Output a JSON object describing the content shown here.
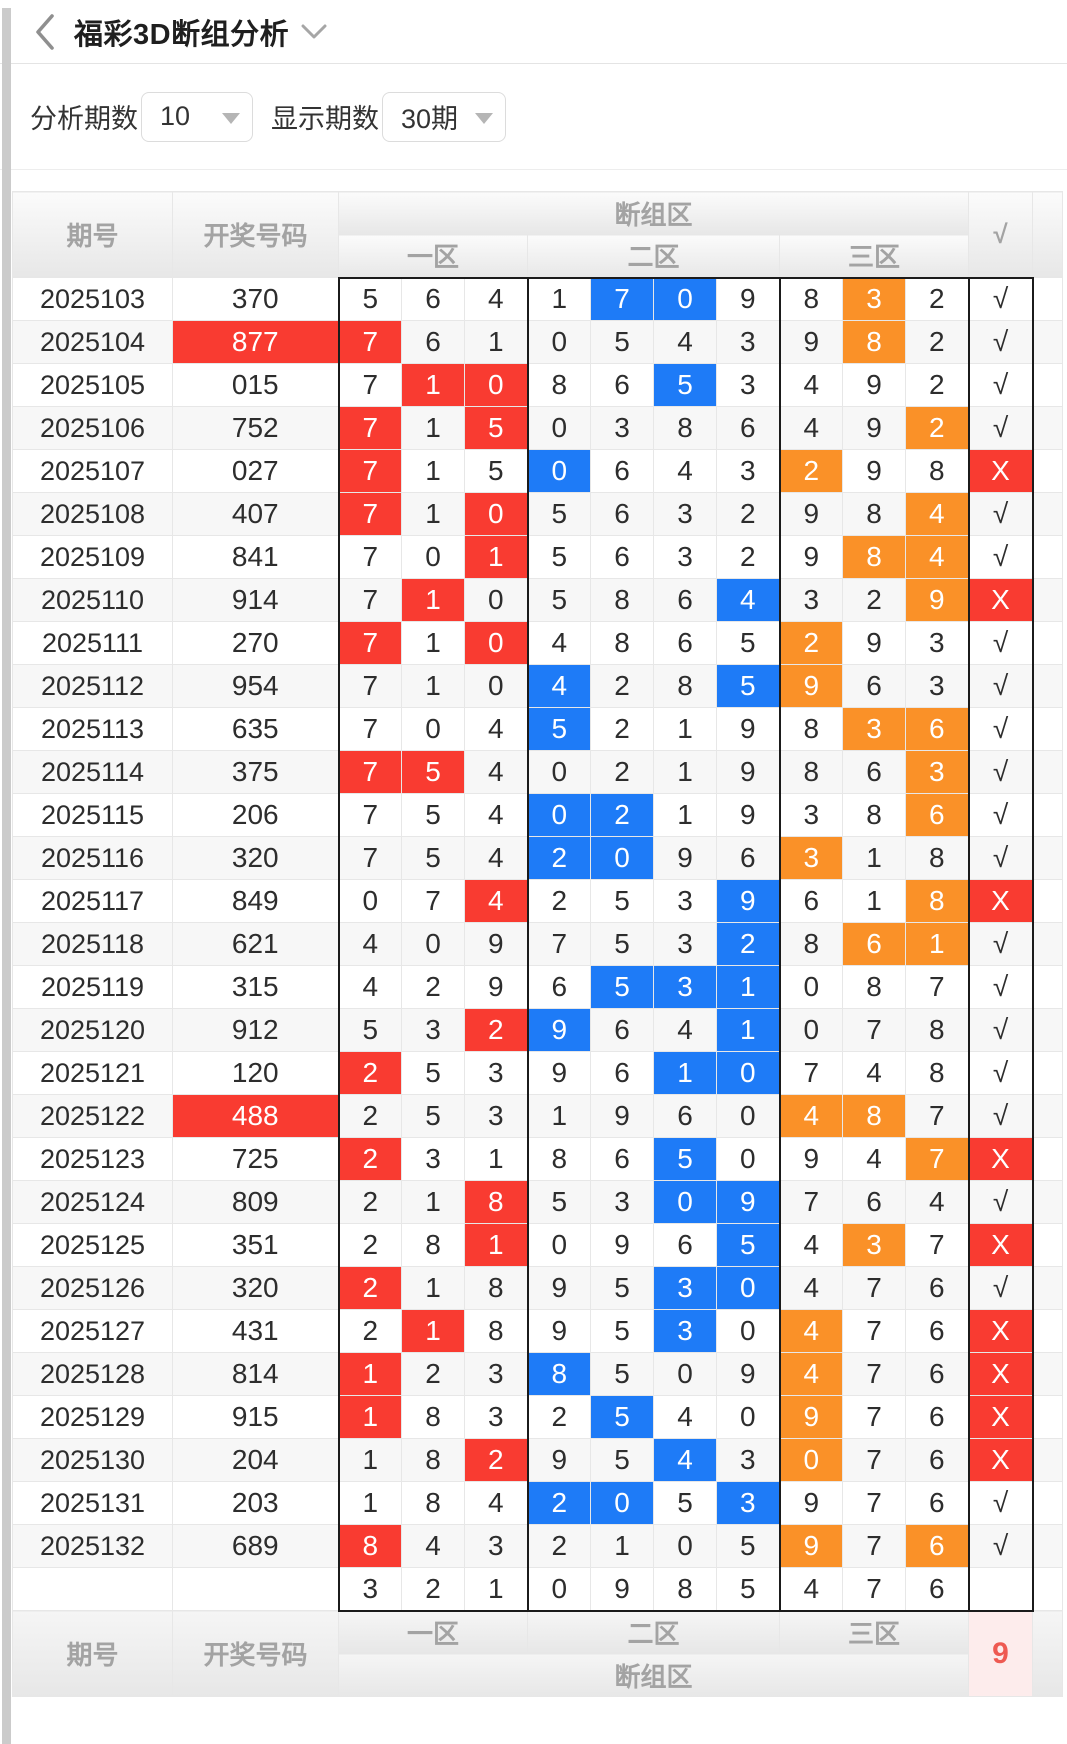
{
  "header": {
    "back_icon": "chevron-left",
    "title": "福彩3D断组分析",
    "dropdown_icon": "chevron-down"
  },
  "filters": {
    "analysis_label": "分析期数",
    "analysis_value": "10",
    "display_label": "显示期数",
    "display_value": "30期"
  },
  "table": {
    "head": {
      "period": "期号",
      "number": "开奖号码",
      "group": "断组区",
      "zone1": "一区",
      "zone2": "二区",
      "zone3": "三区",
      "check": "√"
    },
    "foot": {
      "period": "期号",
      "number": "开奖号码",
      "group": "断组区",
      "zone1": "一区",
      "zone2": "二区",
      "zone3": "三区",
      "badge": "9"
    },
    "rows": [
      {
        "period": "2025103",
        "number": "370",
        "hl": false,
        "digits": [
          "5",
          "6",
          "4",
          "1",
          "7",
          "0",
          "9",
          "8",
          "3",
          "2"
        ],
        "marks": [
          "",
          "",
          "",
          "",
          "b",
          "b",
          "",
          "",
          "o",
          ""
        ],
        "result": "√"
      },
      {
        "period": "2025104",
        "number": "877",
        "hl": true,
        "digits": [
          "7",
          "6",
          "1",
          "0",
          "5",
          "4",
          "3",
          "9",
          "8",
          "2"
        ],
        "marks": [
          "r",
          "",
          "",
          "",
          "",
          "",
          "",
          "",
          "o",
          ""
        ],
        "result": "√"
      },
      {
        "period": "2025105",
        "number": "015",
        "hl": false,
        "digits": [
          "7",
          "1",
          "0",
          "8",
          "6",
          "5",
          "3",
          "4",
          "9",
          "2"
        ],
        "marks": [
          "",
          "r",
          "r",
          "",
          "",
          "b",
          "",
          "",
          "",
          ""
        ],
        "result": "√"
      },
      {
        "period": "2025106",
        "number": "752",
        "hl": false,
        "digits": [
          "7",
          "1",
          "5",
          "0",
          "3",
          "8",
          "6",
          "4",
          "9",
          "2"
        ],
        "marks": [
          "r",
          "",
          "r",
          "",
          "",
          "",
          "",
          "",
          "",
          "o"
        ],
        "result": "√"
      },
      {
        "period": "2025107",
        "number": "027",
        "hl": false,
        "digits": [
          "7",
          "1",
          "5",
          "0",
          "6",
          "4",
          "3",
          "2",
          "9",
          "8"
        ],
        "marks": [
          "r",
          "",
          "",
          "b",
          "",
          "",
          "",
          "o",
          "",
          ""
        ],
        "result": "X"
      },
      {
        "period": "2025108",
        "number": "407",
        "hl": false,
        "digits": [
          "7",
          "1",
          "0",
          "5",
          "6",
          "3",
          "2",
          "9",
          "8",
          "4"
        ],
        "marks": [
          "r",
          "",
          "r",
          "",
          "",
          "",
          "",
          "",
          "",
          "o"
        ],
        "result": "√"
      },
      {
        "period": "2025109",
        "number": "841",
        "hl": false,
        "digits": [
          "7",
          "0",
          "1",
          "5",
          "6",
          "3",
          "2",
          "9",
          "8",
          "4"
        ],
        "marks": [
          "",
          "",
          "r",
          "",
          "",
          "",
          "",
          "",
          "o",
          "o"
        ],
        "result": "√"
      },
      {
        "period": "2025110",
        "number": "914",
        "hl": false,
        "digits": [
          "7",
          "1",
          "0",
          "5",
          "8",
          "6",
          "4",
          "3",
          "2",
          "9"
        ],
        "marks": [
          "",
          "r",
          "",
          "",
          "",
          "",
          "b",
          "",
          "",
          "o"
        ],
        "result": "X"
      },
      {
        "period": "2025111",
        "number": "270",
        "hl": false,
        "digits": [
          "7",
          "1",
          "0",
          "4",
          "8",
          "6",
          "5",
          "2",
          "9",
          "3"
        ],
        "marks": [
          "r",
          "",
          "r",
          "",
          "",
          "",
          "",
          "o",
          "",
          ""
        ],
        "result": "√"
      },
      {
        "period": "2025112",
        "number": "954",
        "hl": false,
        "digits": [
          "7",
          "1",
          "0",
          "4",
          "2",
          "8",
          "5",
          "9",
          "6",
          "3"
        ],
        "marks": [
          "",
          "",
          "",
          "b",
          "",
          "",
          "b",
          "o",
          "",
          ""
        ],
        "result": "√"
      },
      {
        "period": "2025113",
        "number": "635",
        "hl": false,
        "digits": [
          "7",
          "0",
          "4",
          "5",
          "2",
          "1",
          "9",
          "8",
          "3",
          "6"
        ],
        "marks": [
          "",
          "",
          "",
          "b",
          "",
          "",
          "",
          "",
          "o",
          "o"
        ],
        "result": "√"
      },
      {
        "period": "2025114",
        "number": "375",
        "hl": false,
        "digits": [
          "7",
          "5",
          "4",
          "0",
          "2",
          "1",
          "9",
          "8",
          "6",
          "3"
        ],
        "marks": [
          "r",
          "r",
          "",
          "",
          "",
          "",
          "",
          "",
          "",
          "o"
        ],
        "result": "√"
      },
      {
        "period": "2025115",
        "number": "206",
        "hl": false,
        "digits": [
          "7",
          "5",
          "4",
          "0",
          "2",
          "1",
          "9",
          "3",
          "8",
          "6"
        ],
        "marks": [
          "",
          "",
          "",
          "b",
          "b",
          "",
          "",
          "",
          "",
          "o"
        ],
        "result": "√"
      },
      {
        "period": "2025116",
        "number": "320",
        "hl": false,
        "digits": [
          "7",
          "5",
          "4",
          "2",
          "0",
          "9",
          "6",
          "3",
          "1",
          "8"
        ],
        "marks": [
          "",
          "",
          "",
          "b",
          "b",
          "",
          "",
          "o",
          "",
          ""
        ],
        "result": "√"
      },
      {
        "period": "2025117",
        "number": "849",
        "hl": false,
        "digits": [
          "0",
          "7",
          "4",
          "2",
          "5",
          "3",
          "9",
          "6",
          "1",
          "8"
        ],
        "marks": [
          "",
          "",
          "r",
          "",
          "",
          "",
          "b",
          "",
          "",
          "o"
        ],
        "result": "X"
      },
      {
        "period": "2025118",
        "number": "621",
        "hl": false,
        "digits": [
          "4",
          "0",
          "9",
          "7",
          "5",
          "3",
          "2",
          "8",
          "6",
          "1"
        ],
        "marks": [
          "",
          "",
          "",
          "",
          "",
          "",
          "b",
          "",
          "o",
          "o"
        ],
        "result": "√"
      },
      {
        "period": "2025119",
        "number": "315",
        "hl": false,
        "digits": [
          "4",
          "2",
          "9",
          "6",
          "5",
          "3",
          "1",
          "0",
          "8",
          "7"
        ],
        "marks": [
          "",
          "",
          "",
          "",
          "b",
          "b",
          "b",
          "",
          "",
          ""
        ],
        "result": "√"
      },
      {
        "period": "2025120",
        "number": "912",
        "hl": false,
        "digits": [
          "5",
          "3",
          "2",
          "9",
          "6",
          "4",
          "1",
          "0",
          "7",
          "8"
        ],
        "marks": [
          "",
          "",
          "r",
          "b",
          "",
          "",
          "b",
          "",
          "",
          ""
        ],
        "result": "√"
      },
      {
        "period": "2025121",
        "number": "120",
        "hl": false,
        "digits": [
          "2",
          "5",
          "3",
          "9",
          "6",
          "1",
          "0",
          "7",
          "4",
          "8"
        ],
        "marks": [
          "r",
          "",
          "",
          "",
          "",
          "b",
          "b",
          "",
          "",
          ""
        ],
        "result": "√"
      },
      {
        "period": "2025122",
        "number": "488",
        "hl": true,
        "digits": [
          "2",
          "5",
          "3",
          "1",
          "9",
          "6",
          "0",
          "4",
          "8",
          "7"
        ],
        "marks": [
          "",
          "",
          "",
          "",
          "",
          "",
          "",
          "o",
          "o",
          ""
        ],
        "result": "√"
      },
      {
        "period": "2025123",
        "number": "725",
        "hl": false,
        "digits": [
          "2",
          "3",
          "1",
          "8",
          "6",
          "5",
          "0",
          "9",
          "4",
          "7"
        ],
        "marks": [
          "r",
          "",
          "",
          "",
          "",
          "b",
          "",
          "",
          "",
          "o"
        ],
        "result": "X"
      },
      {
        "period": "2025124",
        "number": "809",
        "hl": false,
        "digits": [
          "2",
          "1",
          "8",
          "5",
          "3",
          "0",
          "9",
          "7",
          "6",
          "4"
        ],
        "marks": [
          "",
          "",
          "r",
          "",
          "",
          "b",
          "b",
          "",
          "",
          ""
        ],
        "result": "√"
      },
      {
        "period": "2025125",
        "number": "351",
        "hl": false,
        "digits": [
          "2",
          "8",
          "1",
          "0",
          "9",
          "6",
          "5",
          "4",
          "3",
          "7"
        ],
        "marks": [
          "",
          "",
          "r",
          "",
          "",
          "",
          "b",
          "",
          "o",
          ""
        ],
        "result": "X"
      },
      {
        "period": "2025126",
        "number": "320",
        "hl": false,
        "digits": [
          "2",
          "1",
          "8",
          "9",
          "5",
          "3",
          "0",
          "4",
          "7",
          "6"
        ],
        "marks": [
          "r",
          "",
          "",
          "",
          "",
          "b",
          "b",
          "",
          "",
          ""
        ],
        "result": "√"
      },
      {
        "period": "2025127",
        "number": "431",
        "hl": false,
        "digits": [
          "2",
          "1",
          "8",
          "9",
          "5",
          "3",
          "0",
          "4",
          "7",
          "6"
        ],
        "marks": [
          "",
          "r",
          "",
          "",
          "",
          "b",
          "",
          "o",
          "",
          ""
        ],
        "result": "X"
      },
      {
        "period": "2025128",
        "number": "814",
        "hl": false,
        "digits": [
          "1",
          "2",
          "3",
          "8",
          "5",
          "0",
          "9",
          "4",
          "7",
          "6"
        ],
        "marks": [
          "r",
          "",
          "",
          "b",
          "",
          "",
          "",
          "o",
          "",
          ""
        ],
        "result": "X"
      },
      {
        "period": "2025129",
        "number": "915",
        "hl": false,
        "digits": [
          "1",
          "8",
          "3",
          "2",
          "5",
          "4",
          "0",
          "9",
          "7",
          "6"
        ],
        "marks": [
          "r",
          "",
          "",
          "",
          "b",
          "",
          "",
          "o",
          "",
          ""
        ],
        "result": "X"
      },
      {
        "period": "2025130",
        "number": "204",
        "hl": false,
        "digits": [
          "1",
          "8",
          "2",
          "9",
          "5",
          "4",
          "3",
          "0",
          "7",
          "6"
        ],
        "marks": [
          "",
          "",
          "r",
          "",
          "",
          "b",
          "",
          "o",
          "",
          ""
        ],
        "result": "X"
      },
      {
        "period": "2025131",
        "number": "203",
        "hl": false,
        "digits": [
          "1",
          "8",
          "4",
          "2",
          "0",
          "5",
          "3",
          "9",
          "7",
          "6"
        ],
        "marks": [
          "",
          "",
          "",
          "b",
          "b",
          "",
          "b",
          "",
          "",
          ""
        ],
        "result": "√"
      },
      {
        "period": "2025132",
        "number": "689",
        "hl": false,
        "digits": [
          "8",
          "4",
          "3",
          "2",
          "1",
          "0",
          "5",
          "9",
          "7",
          "6"
        ],
        "marks": [
          "r",
          "",
          "",
          "",
          "",
          "",
          "",
          "o",
          "",
          "o"
        ],
        "result": "√"
      }
    ],
    "prediction": {
      "digits": [
        "3",
        "2",
        "1",
        "0",
        "9",
        "8",
        "5",
        "4",
        "7",
        "6"
      ]
    }
  },
  "colors": {
    "red": "#f93b31",
    "blue": "#1e7bf7",
    "orange": "#fa9128",
    "badge_bg": "#fdecec",
    "badge_text": "#ee5a52"
  }
}
